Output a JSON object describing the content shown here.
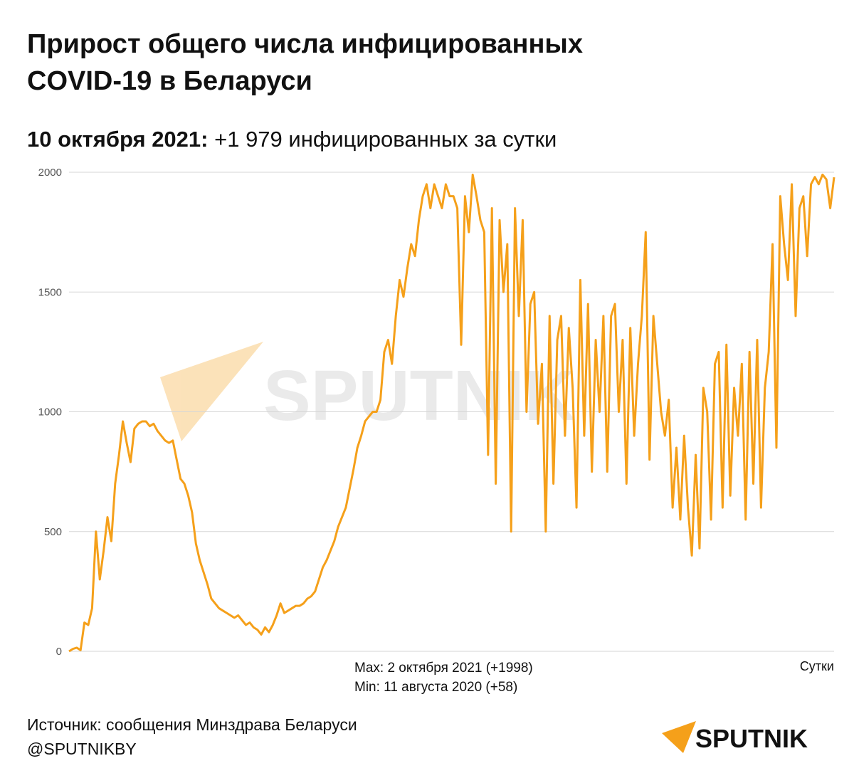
{
  "chart_data": {
    "type": "line",
    "title": [
      "Прирост общего числа инфицированных",
      "COVID-19 в Беларуси"
    ],
    "subtitle": {
      "date": "10 октября 2021:",
      "text": "+1 979 инфицированных за сутки"
    },
    "xlabel": "Сутки",
    "annotations": [
      "Max: 2 октября 2021 (+1998)",
      "Min: 11 августа 2020 (+58)"
    ],
    "source": "Источник: сообщения Минздрава Беларуси",
    "handle": "@SPUTNIKBY",
    "logo": "SPUTNIK",
    "color": "#f5a01a",
    "grid": true,
    "ylim": [
      0,
      2000
    ],
    "yticks": [
      0,
      500,
      1000,
      1500,
      2000
    ],
    "values": [
      0,
      10,
      15,
      5,
      120,
      110,
      180,
      500,
      300,
      420,
      560,
      460,
      700,
      820,
      960,
      870,
      790,
      930,
      950,
      960,
      960,
      940,
      950,
      920,
      900,
      880,
      870,
      880,
      800,
      720,
      700,
      650,
      580,
      450,
      380,
      330,
      280,
      220,
      200,
      180,
      170,
      160,
      150,
      140,
      150,
      130,
      110,
      120,
      100,
      90,
      70,
      100,
      80,
      110,
      150,
      200,
      160,
      170,
      180,
      190,
      190,
      200,
      220,
      230,
      250,
      300,
      350,
      380,
      420,
      460,
      520,
      560,
      600,
      680,
      760,
      850,
      900,
      960,
      980,
      1000,
      1000,
      1050,
      1250,
      1300,
      1200,
      1400,
      1550,
      1480,
      1600,
      1700,
      1650,
      1800,
      1900,
      1950,
      1850,
      1950,
      1900,
      1850,
      1950,
      1900,
      1900,
      1850,
      1280,
      1900,
      1750,
      1990,
      1900,
      1800,
      1750,
      820,
      1850,
      700,
      1800,
      1500,
      1700,
      500,
      1850,
      1400,
      1800,
      1000,
      1450,
      1500,
      950,
      1200,
      500,
      1400,
      700,
      1300,
      1400,
      900,
      1350,
      1100,
      600,
      1550,
      900,
      1450,
      750,
      1300,
      1000,
      1400,
      750,
      1400,
      1450,
      1000,
      1300,
      700,
      1350,
      900,
      1200,
      1400,
      1750,
      800,
      1400,
      1200,
      1000,
      900,
      1050,
      600,
      850,
      550,
      900,
      600,
      400,
      820,
      430,
      1100,
      1000,
      550,
      1200,
      1250,
      600,
      1280,
      650,
      1100,
      900,
      1200,
      550,
      1250,
      700,
      1300,
      600,
      1100,
      1250,
      1700,
      850,
      1900,
      1700,
      1550,
      1950,
      1400,
      1850,
      1900,
      1650,
      1950,
      1980,
      1950,
      1990,
      1970,
      1850,
      1979
    ]
  }
}
